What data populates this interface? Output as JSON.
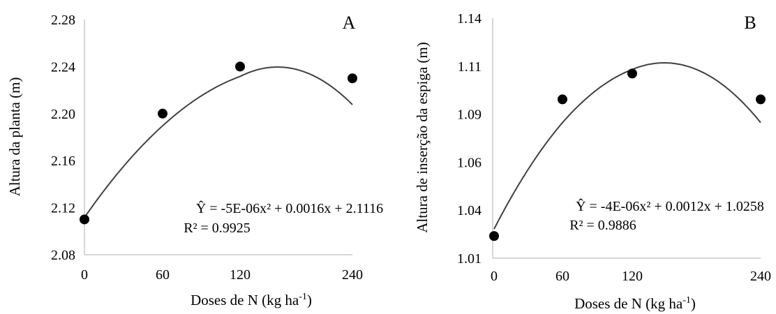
{
  "chart_data": [
    {
      "type": "scatter",
      "panel_label": "A",
      "xlabel_main": "Doses de N (kg ha",
      "xlabel_sup": "-1",
      "xlabel_close": ")",
      "ylabel": "Altura da planta (m)",
      "x_ticks": [
        "0",
        "60",
        "120",
        "240"
      ],
      "y_ticks": [
        "2.08",
        "2.12",
        "2.16",
        "2.20",
        "2.24",
        "2.28"
      ],
      "xlim": [
        0,
        240
      ],
      "ylim": [
        2.08,
        2.28
      ],
      "points": [
        {
          "x": 0,
          "y": 2.11
        },
        {
          "x": 60,
          "y": 2.2
        },
        {
          "x": 120,
          "y": 2.24
        },
        {
          "x": 240,
          "y": 2.23
        }
      ],
      "trend": {
        "a": -5e-06,
        "b": 0.0016,
        "c": 2.1116
      },
      "equation_line1": "Ŷ = -5E-06x² + 0.0016x + 2.1116",
      "equation_line2": "R² = 0.9925",
      "grid": false
    },
    {
      "type": "scatter",
      "panel_label": "B",
      "xlabel_main": "Doses de N (kg ha",
      "xlabel_sup": "-1",
      "xlabel_close": ")",
      "ylabel": "Altura de inserção da espiga (m)",
      "x_ticks": [
        "0",
        "60",
        "120",
        "240"
      ],
      "y_ticks": [
        "1.01",
        "1.04",
        "1.06",
        "1.09",
        "1.11",
        "1.14"
      ],
      "xlim": [
        0,
        240
      ],
      "ylim": [
        1.01,
        1.14
      ],
      "points": [
        {
          "x": 0,
          "y": 1.022
        },
        {
          "x": 60,
          "y": 1.096
        },
        {
          "x": 120,
          "y": 1.11
        },
        {
          "x": 240,
          "y": 1.096
        }
      ],
      "trend": {
        "a": -4e-06,
        "b": 0.0012,
        "c": 1.0258
      },
      "equation_line1": "Ŷ = -4E-06x² + 0.0012x + 1.0258",
      "equation_line2": "R² = 0.9886",
      "grid": false
    }
  ]
}
